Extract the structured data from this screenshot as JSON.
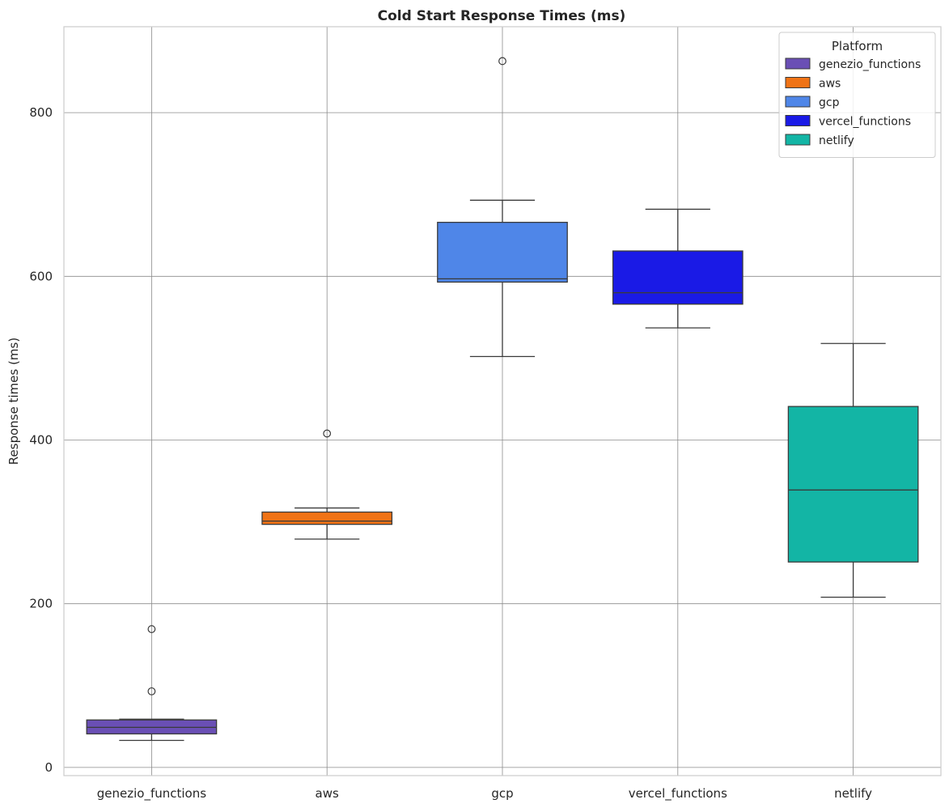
{
  "chart_data": {
    "type": "box",
    "title": "Cold Start Response Times (ms)",
    "xlabel": "",
    "ylabel": "Response times (ms)",
    "ylim": [
      -10,
      905
    ],
    "yticks": [
      0,
      200,
      400,
      600,
      800
    ],
    "grid": true,
    "legend": {
      "title": "Platform",
      "placement": "top-right"
    },
    "categories": [
      "genezio_functions",
      "aws",
      "gcp",
      "vercel_functions",
      "netlify"
    ],
    "series": [
      {
        "name": "genezio_functions",
        "color": "#6a4fb5",
        "whislo": 33,
        "q1": 41,
        "med": 49,
        "q3": 58,
        "whishi": 59,
        "fliers": [
          93,
          169
        ]
      },
      {
        "name": "aws",
        "color": "#f07316",
        "whislo": 279,
        "q1": 297,
        "med": 301,
        "q3": 312,
        "whishi": 317,
        "fliers": [
          408
        ]
      },
      {
        "name": "gcp",
        "color": "#4f86e8",
        "whislo": 502,
        "q1": 593,
        "med": 597,
        "q3": 666,
        "whishi": 693,
        "fliers": [
          863
        ]
      },
      {
        "name": "vercel_functions",
        "color": "#1a1ae6",
        "whislo": 537,
        "q1": 566,
        "med": 580,
        "q3": 631,
        "whishi": 682,
        "fliers": []
      },
      {
        "name": "netlify",
        "color": "#13b5a5",
        "whislo": 208,
        "q1": 251,
        "med": 339,
        "q3": 441,
        "whishi": 518,
        "fliers": []
      }
    ]
  }
}
